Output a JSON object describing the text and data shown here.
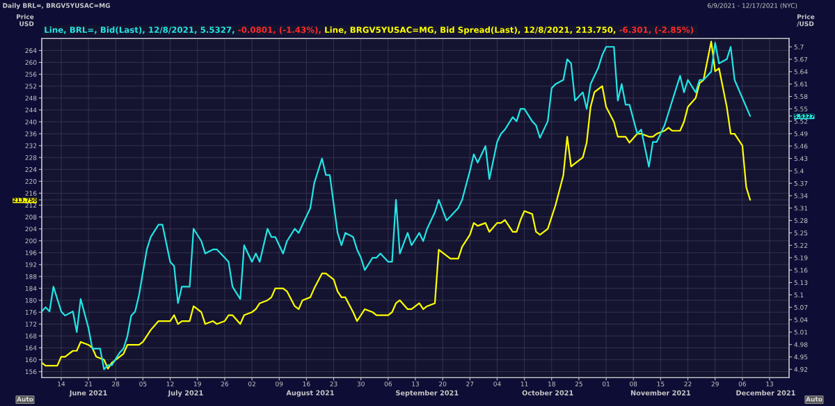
{
  "chart_data": {
    "type": "line",
    "title": "Daily BRL=, BRGV5YUSAC=MG",
    "subtitle": "6/9/2021 - 12/17/2021 (NYC)",
    "ylabel": "Price\nUSD",
    "y2label": "Price\n/USD",
    "xlim": [
      "2021-06-09",
      "2021-12-18"
    ],
    "x2lim": [
      "2021-06-09",
      "2021-12-18"
    ],
    "ylim": [
      154,
      268
    ],
    "y2lim": [
      4.9,
      5.72
    ],
    "xticks": [
      {
        "value": "2021-06-14",
        "label": "14"
      },
      {
        "value": "2021-06-21",
        "label": "21"
      },
      {
        "value": "2021-06-28",
        "label": "28"
      },
      {
        "value": "2021-07-05",
        "label": "05"
      },
      {
        "value": "2021-07-12",
        "label": "12"
      },
      {
        "value": "2021-07-19",
        "label": "19"
      },
      {
        "value": "2021-07-26",
        "label": "26"
      },
      {
        "value": "2021-08-02",
        "label": "02"
      },
      {
        "value": "2021-08-09",
        "label": "09"
      },
      {
        "value": "2021-08-16",
        "label": "16"
      },
      {
        "value": "2021-08-23",
        "label": "23"
      },
      {
        "value": "2021-08-30",
        "label": "30"
      },
      {
        "value": "2021-09-06",
        "label": "06"
      },
      {
        "value": "2021-09-13",
        "label": "13"
      },
      {
        "value": "2021-09-20",
        "label": "20"
      },
      {
        "value": "2021-09-27",
        "label": "27"
      },
      {
        "value": "2021-10-04",
        "label": "04"
      },
      {
        "value": "2021-10-11",
        "label": "11"
      },
      {
        "value": "2021-10-18",
        "label": "18"
      },
      {
        "value": "2021-10-25",
        "label": "25"
      },
      {
        "value": "2021-11-01",
        "label": "01"
      },
      {
        "value": "2021-11-08",
        "label": "08"
      },
      {
        "value": "2021-11-15",
        "label": "15"
      },
      {
        "value": "2021-11-22",
        "label": "22"
      },
      {
        "value": "2021-11-29",
        "label": "29"
      },
      {
        "value": "2021-12-06",
        "label": "06"
      },
      {
        "value": "2021-12-13",
        "label": "13"
      }
    ],
    "x2ticks": [
      {
        "value": "2021-06-21",
        "label": "June 2021"
      },
      {
        "value": "2021-07-16",
        "label": "July 2021"
      },
      {
        "value": "2021-08-17",
        "label": "August 2021"
      },
      {
        "value": "2021-09-16",
        "label": "September 2021"
      },
      {
        "value": "2021-10-17",
        "label": "October 2021"
      },
      {
        "value": "2021-11-15",
        "label": "November 2021"
      },
      {
        "value": "2021-12-12",
        "label": "December 2021"
      }
    ],
    "yticks": [
      156,
      160,
      164,
      168,
      172,
      176,
      180,
      184,
      188,
      192,
      196,
      200,
      204,
      208,
      212,
      {
        "value": 213.75,
        "label": "213.750"
      },
      216,
      220,
      224,
      228,
      232,
      236,
      240,
      244,
      248,
      252,
      256,
      260,
      264
    ],
    "y2ticks": [
      4.92,
      4.95,
      4.98,
      5.01,
      5.04,
      5.07,
      5.1,
      5.13,
      5.16,
      5.19,
      5.22,
      5.25,
      5.28,
      5.31,
      5.34,
      5.37,
      5.4,
      5.43,
      5.46,
      5.49,
      5.52,
      {
        "value": 5.5327,
        "label": "5.5327"
      },
      5.55,
      5.58,
      5.61,
      5.64,
      5.67,
      5.7
    ],
    "grid": true,
    "legend": "top left",
    "marker": "none",
    "line_style": "solid",
    "annotations": [
      "-0.0801, (-1.43%),",
      "-6.301, (-2.85%)",
      "Auto",
      "Auto"
    ],
    "series": [
      {
        "name": "Line, BRL=, Bid(Last), 12/8/2021, 5.5327,",
        "color": "#22e5e5",
        "axis": "y2",
        "x": [
          "2021-06-09",
          "2021-06-10",
          "2021-06-11",
          "2021-06-12",
          "2021-06-14",
          "2021-06-15",
          "2021-06-17",
          "2021-06-18",
          "2021-06-19",
          "2021-06-21",
          "2021-06-22",
          "2021-06-24",
          "2021-06-25",
          "2021-06-26",
          "2021-06-27",
          "2021-06-29",
          "2021-06-30",
          "2021-07-01",
          "2021-07-02",
          "2021-07-03",
          "2021-07-04",
          "2021-07-06",
          "2021-07-07",
          "2021-07-09",
          "2021-07-10",
          "2021-07-12",
          "2021-07-13",
          "2021-07-14",
          "2021-07-15",
          "2021-07-17",
          "2021-07-18",
          "2021-07-20",
          "2021-07-21",
          "2021-07-23",
          "2021-07-24",
          "2021-07-26",
          "2021-07-27",
          "2021-07-28",
          "2021-07-30",
          "2021-07-31",
          "2021-08-02",
          "2021-08-03",
          "2021-08-04",
          "2021-08-06",
          "2021-08-07",
          "2021-08-08",
          "2021-08-10",
          "2021-08-11",
          "2021-08-13",
          "2021-08-14",
          "2021-08-15",
          "2021-08-17",
          "2021-08-18",
          "2021-08-20",
          "2021-08-21",
          "2021-08-22",
          "2021-08-24",
          "2021-08-25",
          "2021-08-26",
          "2021-08-28",
          "2021-08-29",
          "2021-08-30",
          "2021-08-31",
          "2021-09-02",
          "2021-09-03",
          "2021-09-04",
          "2021-09-06",
          "2021-09-07",
          "2021-09-08",
          "2021-09-09",
          "2021-09-11",
          "2021-09-12",
          "2021-09-14",
          "2021-09-15",
          "2021-09-16",
          "2021-09-18",
          "2021-09-19",
          "2021-09-21",
          "2021-09-22",
          "2021-09-24",
          "2021-09-25",
          "2021-09-27",
          "2021-09-28",
          "2021-09-29",
          "2021-10-01",
          "2021-10-02",
          "2021-10-04",
          "2021-10-05",
          "2021-10-06",
          "2021-10-08",
          "2021-10-09",
          "2021-10-10",
          "2021-10-11",
          "2021-10-13",
          "2021-10-14",
          "2021-10-15",
          "2021-10-17",
          "2021-10-18",
          "2021-10-19",
          "2021-10-21",
          "2021-10-22",
          "2021-10-23",
          "2021-10-24",
          "2021-10-26",
          "2021-10-27",
          "2021-10-28",
          "2021-10-30",
          "2021-10-31",
          "2021-11-01",
          "2021-11-03",
          "2021-11-04",
          "2021-11-05",
          "2021-11-06",
          "2021-11-07",
          "2021-11-09",
          "2021-11-10",
          "2021-11-12",
          "2021-11-13",
          "2021-11-14",
          "2021-11-16",
          "2021-11-17",
          "2021-11-18",
          "2021-11-20",
          "2021-11-21",
          "2021-11-22",
          "2021-11-24",
          "2021-11-25",
          "2021-11-26",
          "2021-11-28",
          "2021-11-29",
          "2021-11-30",
          "2021-12-02",
          "2021-12-03",
          "2021-12-04",
          "2021-12-08"
        ],
        "values": [
          5.06,
          5.07,
          5.06,
          5.12,
          5.06,
          5.05,
          5.06,
          5.01,
          5.09,
          5.02,
          4.97,
          4.97,
          4.92,
          4.93,
          4.93,
          4.96,
          4.97,
          5.0,
          5.05,
          5.06,
          5.1,
          5.21,
          5.24,
          5.27,
          5.27,
          5.18,
          5.17,
          5.08,
          5.12,
          5.12,
          5.26,
          5.23,
          5.2,
          5.21,
          5.21,
          5.19,
          5.18,
          5.12,
          5.09,
          5.22,
          5.18,
          5.2,
          5.18,
          5.26,
          5.24,
          5.24,
          5.2,
          5.23,
          5.26,
          5.25,
          5.27,
          5.31,
          5.37,
          5.43,
          5.39,
          5.39,
          5.25,
          5.22,
          5.25,
          5.24,
          5.21,
          5.19,
          5.16,
          5.19,
          5.19,
          5.2,
          5.18,
          5.18,
          5.33,
          5.2,
          5.25,
          5.22,
          5.25,
          5.23,
          5.26,
          5.3,
          5.33,
          5.28,
          5.29,
          5.31,
          5.33,
          5.4,
          5.44,
          5.42,
          5.46,
          5.38,
          5.47,
          5.49,
          5.5,
          5.53,
          5.52,
          5.55,
          5.55,
          5.52,
          5.51,
          5.48,
          5.52,
          5.6,
          5.61,
          5.62,
          5.67,
          5.66,
          5.57,
          5.59,
          5.55,
          5.61,
          5.65,
          5.68,
          5.7,
          5.7,
          5.57,
          5.61,
          5.56,
          5.56,
          5.49,
          5.5,
          5.41,
          5.47,
          5.47,
          5.51,
          5.54,
          5.57,
          5.63,
          5.59,
          5.62,
          5.59,
          5.62,
          5.62,
          5.64,
          5.71,
          5.66,
          5.67,
          5.7,
          5.62,
          5.5327
        ]
      },
      {
        "name": "Line, BRGV5YUSAC=MG, Bid Spread(Last), 12/8/2021, 213.750,",
        "color": "#ffff00",
        "axis": "y",
        "x": [
          "2021-06-09",
          "2021-06-10",
          "2021-06-11",
          "2021-06-13",
          "2021-06-14",
          "2021-06-15",
          "2021-06-17",
          "2021-06-18",
          "2021-06-19",
          "2021-06-21",
          "2021-06-22",
          "2021-06-23",
          "2021-06-25",
          "2021-06-26",
          "2021-06-27",
          "2021-06-28",
          "2021-06-30",
          "2021-07-01",
          "2021-07-02",
          "2021-07-04",
          "2021-07-05",
          "2021-07-06",
          "2021-07-07",
          "2021-07-09",
          "2021-07-10",
          "2021-07-12",
          "2021-07-13",
          "2021-07-14",
          "2021-07-15",
          "2021-07-17",
          "2021-07-18",
          "2021-07-20",
          "2021-07-21",
          "2021-07-23",
          "2021-07-24",
          "2021-07-26",
          "2021-07-27",
          "2021-07-28",
          "2021-07-30",
          "2021-07-31",
          "2021-08-02",
          "2021-08-03",
          "2021-08-04",
          "2021-08-06",
          "2021-08-07",
          "2021-08-08",
          "2021-08-10",
          "2021-08-11",
          "2021-08-13",
          "2021-08-14",
          "2021-08-15",
          "2021-08-17",
          "2021-08-18",
          "2021-08-20",
          "2021-08-21",
          "2021-08-23",
          "2021-08-24",
          "2021-08-25",
          "2021-08-26",
          "2021-08-28",
          "2021-08-29",
          "2021-08-30",
          "2021-08-31",
          "2021-09-02",
          "2021-09-03",
          "2021-09-04",
          "2021-09-06",
          "2021-09-07",
          "2021-09-08",
          "2021-09-09",
          "2021-09-11",
          "2021-09-12",
          "2021-09-14",
          "2021-09-15",
          "2021-09-16",
          "2021-09-18",
          "2021-09-19",
          "2021-09-21",
          "2021-09-22",
          "2021-09-24",
          "2021-09-25",
          "2021-09-27",
          "2021-09-28",
          "2021-09-29",
          "2021-10-01",
          "2021-10-02",
          "2021-10-04",
          "2021-10-05",
          "2021-10-06",
          "2021-10-08",
          "2021-10-09",
          "2021-10-10",
          "2021-10-11",
          "2021-10-13",
          "2021-10-14",
          "2021-10-15",
          "2021-10-17",
          "2021-10-18",
          "2021-10-19",
          "2021-10-21",
          "2021-10-22",
          "2021-10-23",
          "2021-10-24",
          "2021-10-26",
          "2021-10-27",
          "2021-10-28",
          "2021-10-29",
          "2021-10-31",
          "2021-11-01",
          "2021-11-03",
          "2021-11-04",
          "2021-11-05",
          "2021-11-06",
          "2021-11-07",
          "2021-11-09",
          "2021-11-10",
          "2021-11-12",
          "2021-11-13",
          "2021-11-14",
          "2021-11-16",
          "2021-11-17",
          "2021-11-18",
          "2021-11-20",
          "2021-11-21",
          "2021-11-22",
          "2021-11-24",
          "2021-11-25",
          "2021-11-26",
          "2021-11-28",
          "2021-11-29",
          "2021-11-30",
          "2021-12-02",
          "2021-12-03",
          "2021-12-04",
          "2021-12-06",
          "2021-12-07",
          "2021-12-08"
        ],
        "values": [
          159,
          158,
          158,
          158,
          161,
          161,
          163,
          163,
          166,
          165,
          164,
          161,
          160,
          157,
          159,
          160,
          162,
          165,
          165,
          165,
          166,
          168,
          170,
          173,
          173,
          173,
          175,
          172,
          173,
          173,
          178,
          176,
          172,
          173,
          172,
          173,
          175,
          175,
          172,
          175,
          176,
          177,
          179,
          180,
          181,
          184,
          184,
          183,
          178,
          177,
          180,
          181,
          184,
          189,
          189,
          187,
          183,
          181,
          181,
          176,
          173,
          175,
          177,
          176,
          175,
          175,
          175,
          176,
          179,
          180,
          177,
          177,
          179,
          177,
          178,
          179,
          197,
          195,
          194,
          194,
          198,
          202,
          206,
          205,
          206,
          203,
          206,
          206,
          207,
          203,
          203,
          207,
          210,
          209,
          203,
          202,
          204,
          208,
          212,
          222,
          235,
          225,
          226,
          228,
          233,
          245,
          250,
          252,
          245,
          240,
          235,
          235,
          235,
          233,
          236,
          236,
          235,
          235,
          236,
          237,
          238,
          237,
          237,
          240,
          245,
          248,
          253,
          254,
          267,
          257,
          258,
          245,
          236,
          236,
          232,
          218,
          213.75
        ]
      }
    ]
  }
}
